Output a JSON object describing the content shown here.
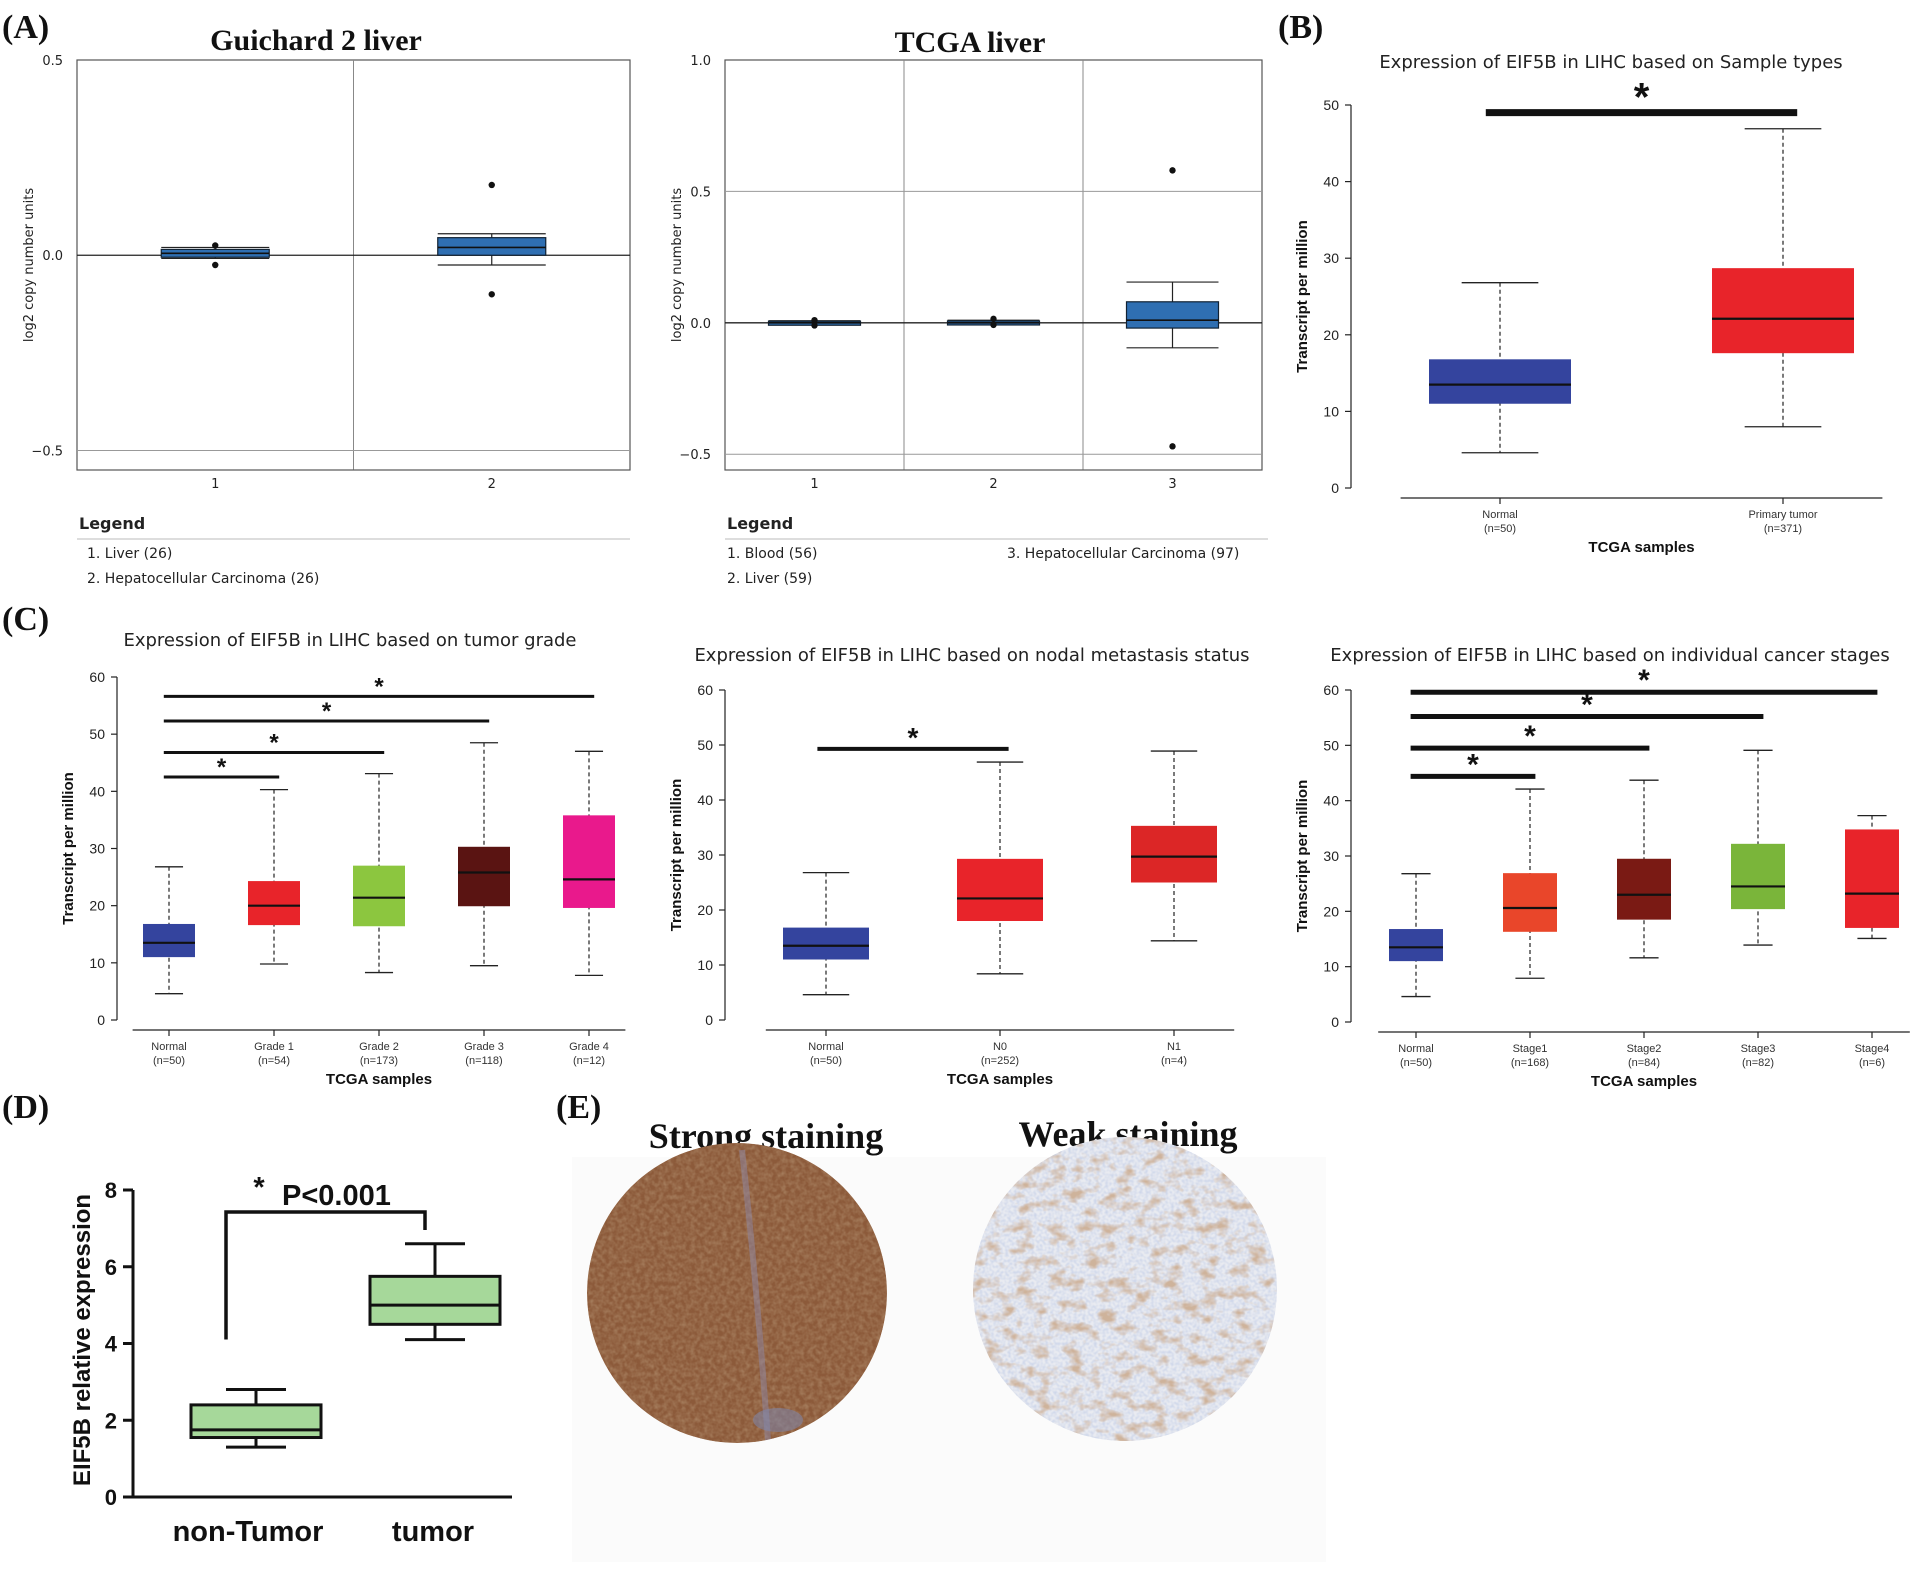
{
  "panel_labels": {
    "A": "(A)",
    "B": "(B)",
    "C": "(C)",
    "D": "(D)",
    "E": "(E)"
  },
  "colors": {
    "onco_box": "#2f6fb2",
    "normal": "#34449e",
    "tumor": "#e8242a",
    "grade1": "#e8242a",
    "grade2": "#8cc63f",
    "grade3": "#5a1412",
    "grade4": "#e9198c",
    "n0": "#e8242a",
    "n1": "#dc2626",
    "stage1": "#e9462a",
    "stage2": "#7a1a14",
    "stage3": "#7ab53a",
    "stage4": "#e8242a",
    "qpcr_box": "#a6d89a",
    "stain_strong": "#9a6a48",
    "stain_weak": "#b7a18e"
  },
  "chart_data": [
    {
      "id": "A1",
      "type": "box",
      "title": "Guichard 2 liver",
      "ylabel": "log2 copy number units",
      "ylim": [
        -0.55,
        0.5
      ],
      "yticks": [
        0.5,
        0.0,
        -0.5
      ],
      "ytick_labels": [
        "0.5",
        "0.0",
        "−0.5"
      ],
      "categories": [
        "1",
        "2"
      ],
      "boxes": [
        {
          "q1": -0.005,
          "median": 0.005,
          "q3": 0.015,
          "whislo": -0.008,
          "whishi": 0.02,
          "fliers": [
            0.025,
            -0.025
          ]
        },
        {
          "q1": 0.0,
          "median": 0.02,
          "q3": 0.045,
          "whislo": -0.025,
          "whishi": 0.055,
          "fliers": [
            0.18,
            -0.1
          ]
        }
      ],
      "legend": {
        "title": "Legend",
        "items": [
          "1. Liver (26)",
          "2. Hepatocellular Carcinoma (26)"
        ]
      }
    },
    {
      "id": "A2",
      "type": "box",
      "title": "TCGA liver",
      "ylabel": "log2 copy number units",
      "ylim": [
        -0.56,
        1.0
      ],
      "yticks": [
        1.0,
        0.5,
        0.0,
        -0.5
      ],
      "ytick_labels": [
        "1.0",
        "0.5",
        "0.0",
        "−0.5"
      ],
      "categories": [
        "1",
        "2",
        "3"
      ],
      "boxes": [
        {
          "q1": -0.004,
          "median": 0.0,
          "q3": 0.006,
          "whislo": -0.006,
          "whishi": 0.008,
          "fliers": [
            0.01,
            -0.01
          ]
        },
        {
          "q1": -0.003,
          "median": 0.0,
          "q3": 0.007,
          "whislo": -0.005,
          "whishi": 0.01,
          "fliers": [
            0.015,
            -0.008
          ]
        },
        {
          "q1": -0.02,
          "median": 0.01,
          "q3": 0.08,
          "whislo": -0.095,
          "whishi": 0.155,
          "fliers": [
            0.58,
            -0.47
          ]
        }
      ],
      "legend": {
        "title": "Legend",
        "items": [
          "1. Blood (56)",
          "2. Liver (59)",
          "3. Hepatocellular Carcinoma (97)"
        ]
      }
    },
    {
      "id": "B",
      "type": "box",
      "title": "Expression of EIF5B in LIHC based on Sample types",
      "ylabel": "Transcript per million",
      "xlabel": "TCGA samples",
      "ylim": [
        0,
        50
      ],
      "yticks": [
        0,
        10,
        20,
        30,
        40,
        50
      ],
      "categories": [
        "Normal",
        "Primary tumor"
      ],
      "counts": [
        "(n=50)",
        "(n=371)"
      ],
      "boxes": [
        {
          "whislo": 4.6,
          "q1": 11.0,
          "median": 13.5,
          "q3": 16.8,
          "whishi": 26.8
        },
        {
          "whislo": 8.0,
          "q1": 17.6,
          "median": 22.1,
          "q3": 28.7,
          "whishi": 46.9
        }
      ],
      "sig": [
        {
          "from": 0,
          "to": 1,
          "value": 49,
          "label": "*"
        }
      ]
    },
    {
      "id": "C1",
      "type": "box",
      "title": "Expression of EIF5B in LIHC based on tumor grade",
      "ylabel": "Transcript per million",
      "xlabel": "TCGA samples",
      "ylim": [
        0,
        60
      ],
      "yticks": [
        0,
        10,
        20,
        30,
        40,
        50,
        60
      ],
      "categories": [
        "Normal",
        "Grade 1",
        "Grade 2",
        "Grade 3",
        "Grade 4"
      ],
      "counts": [
        "(n=50)",
        "(n=54)",
        "(n=173)",
        "(n=118)",
        "(n=12)"
      ],
      "boxes": [
        {
          "whislo": 4.6,
          "q1": 11.0,
          "median": 13.5,
          "q3": 16.8,
          "whishi": 26.8
        },
        {
          "whislo": 9.8,
          "q1": 16.6,
          "median": 20.0,
          "q3": 24.3,
          "whishi": 40.3
        },
        {
          "whislo": 8.3,
          "q1": 16.4,
          "median": 21.4,
          "q3": 27.0,
          "whishi": 43.1
        },
        {
          "whislo": 9.5,
          "q1": 19.9,
          "median": 25.8,
          "q3": 30.3,
          "whishi": 48.5
        },
        {
          "whislo": 7.8,
          "q1": 19.6,
          "median": 24.6,
          "q3": 35.8,
          "whishi": 47.0
        }
      ],
      "sig": [
        {
          "from": 0,
          "to": 1,
          "value": 42.5,
          "label": "*"
        },
        {
          "from": 0,
          "to": 2,
          "value": 46.8,
          "label": "*"
        },
        {
          "from": 0,
          "to": 3,
          "value": 52.3,
          "label": "*"
        },
        {
          "from": 0,
          "to": 4,
          "value": 56.6,
          "label": "*"
        }
      ]
    },
    {
      "id": "C2",
      "type": "box",
      "title": "Expression of EIF5B in LIHC based on nodal metastasis status",
      "ylabel": "Transcript per million",
      "xlabel": "TCGA samples",
      "ylim": [
        0,
        60
      ],
      "yticks": [
        0,
        10,
        20,
        30,
        40,
        50,
        60
      ],
      "categories": [
        "Normal",
        "N0",
        "N1"
      ],
      "counts": [
        "(n=50)",
        "(n=252)",
        "(n=4)"
      ],
      "boxes": [
        {
          "whislo": 4.6,
          "q1": 11.0,
          "median": 13.5,
          "q3": 16.8,
          "whishi": 26.8
        },
        {
          "whislo": 8.4,
          "q1": 18.0,
          "median": 22.1,
          "q3": 29.3,
          "whishi": 46.9
        },
        {
          "whislo": 14.4,
          "q1": 25.0,
          "median": 29.7,
          "q3": 35.3,
          "whishi": 48.9
        }
      ],
      "sig": [
        {
          "from": 0,
          "to": 1,
          "value": 49.3,
          "label": "*"
        }
      ]
    },
    {
      "id": "C3",
      "type": "box",
      "title": "Expression of EIF5B in LIHC based on individual cancer stages",
      "ylabel": "Transcript per million",
      "xlabel": "TCGA samples",
      "ylim": [
        0,
        60
      ],
      "yticks": [
        0,
        10,
        20,
        30,
        40,
        50,
        60
      ],
      "categories": [
        "Normal",
        "Stage1",
        "Stage2",
        "Stage3",
        "Stage4"
      ],
      "counts": [
        "(n=50)",
        "(n=168)",
        "(n=84)",
        "(n=82)",
        "(n=6)"
      ],
      "boxes": [
        {
          "whislo": 4.6,
          "q1": 11.0,
          "median": 13.5,
          "q3": 16.8,
          "whishi": 26.8
        },
        {
          "whislo": 7.9,
          "q1": 16.3,
          "median": 20.6,
          "q3": 26.9,
          "whishi": 42.1
        },
        {
          "whislo": 11.6,
          "q1": 18.5,
          "median": 23.0,
          "q3": 29.5,
          "whishi": 43.7
        },
        {
          "whislo": 13.9,
          "q1": 20.4,
          "median": 24.5,
          "q3": 32.2,
          "whishi": 49.1
        },
        {
          "whislo": 15.1,
          "q1": 17.0,
          "median": 23.2,
          "q3": 34.8,
          "whishi": 37.3
        }
      ],
      "sig": [
        {
          "from": 0,
          "to": 1,
          "value": 44.4,
          "label": "*"
        },
        {
          "from": 0,
          "to": 2,
          "value": 49.5,
          "label": "*"
        },
        {
          "from": 0,
          "to": 3,
          "value": 55.2,
          "label": "*"
        },
        {
          "from": 0,
          "to": 4,
          "value": 59.6,
          "label": "*"
        }
      ]
    },
    {
      "id": "D",
      "type": "box",
      "ylabel": "EIF5B relative expression",
      "ylim": [
        0,
        8
      ],
      "yticks": [
        0,
        2,
        4,
        6,
        8
      ],
      "categories": [
        "non-Tumor",
        "tumor"
      ],
      "boxes": [
        {
          "whislo": 1.3,
          "q1": 1.55,
          "median": 1.75,
          "q3": 2.4,
          "whishi": 2.8
        },
        {
          "whislo": 4.1,
          "q1": 4.5,
          "median": 5.0,
          "q3": 5.75,
          "whishi": 6.6
        }
      ],
      "annotation": {
        "star": "*",
        "text": "P<0.001"
      }
    }
  ],
  "panel_E": {
    "strong_title": "Strong staining",
    "weak_title": "Weak staining"
  }
}
